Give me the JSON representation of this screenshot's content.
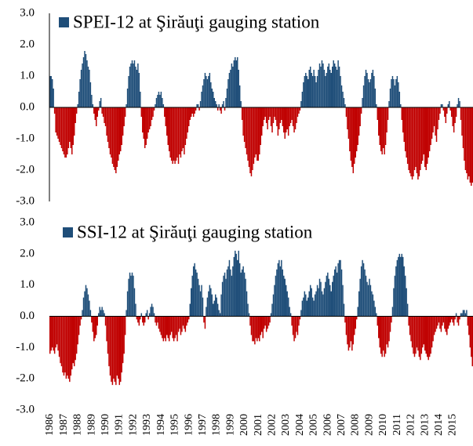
{
  "chart_data": [
    {
      "type": "bar",
      "ylim": [
        -3,
        3
      ],
      "yticks": [
        {
          "value": 3,
          "label": "3.0"
        },
        {
          "value": 2,
          "label": "2.0"
        },
        {
          "value": 1,
          "label": "1.0"
        },
        {
          "value": 0,
          "label": "0.0"
        },
        {
          "value": -1,
          "label": "-1.0"
        },
        {
          "value": -2,
          "label": "-2.0"
        },
        {
          "value": -3,
          "label": "-3.0"
        }
      ],
      "positive_color": "#1f4e79",
      "negative_color": "#c00000",
      "series": [
        {
          "name": "SPEI-12 at Şirăuţi gauging station",
          "color": "#1f4e79",
          "values": [
            1.0,
            1.0,
            0.9,
            0.6,
            -0.2,
            -0.8,
            -0.9,
            -1.0,
            -1.1,
            -1.2,
            -1.3,
            -1.4,
            -1.5,
            -1.6,
            -1.6,
            -1.5,
            -1.3,
            -1.1,
            -1.3,
            -1.5,
            -1.2,
            -0.9,
            -0.5,
            -0.2,
            0.1,
            0.5,
            0.9,
            1.2,
            1.4,
            1.6,
            1.8,
            1.7,
            1.5,
            1.3,
            1.2,
            0.8,
            0.4,
            0.1,
            -0.2,
            -0.4,
            -0.6,
            -0.3,
            -0.1,
            0.2,
            0.3,
            -0.2,
            -0.3,
            -0.5,
            -0.6,
            -0.9,
            -1.1,
            -1.3,
            -1.5,
            -1.6,
            -1.8,
            -1.9,
            -2.0,
            -2.1,
            -1.9,
            -1.7,
            -1.5,
            -1.4,
            -1.2,
            -0.9,
            -0.6,
            -0.3,
            0.1,
            0.6,
            1.0,
            1.3,
            1.4,
            1.5,
            1.4,
            1.5,
            1.3,
            1.2,
            1.4,
            1.1,
            0.5,
            -0.3,
            -0.8,
            -1.0,
            -1.3,
            -1.2,
            -1.0,
            -0.8,
            -0.7,
            -0.6,
            -0.4,
            -0.3,
            -0.1,
            0.1,
            0.3,
            0.4,
            0.5,
            0.4,
            0.5,
            0.3,
            0.1,
            -0.3,
            -0.6,
            -0.9,
            -1.2,
            -1.4,
            -1.6,
            -1.7,
            -1.8,
            -1.7,
            -1.8,
            -1.7,
            -1.6,
            -1.8,
            -1.5,
            -1.6,
            -1.4,
            -1.3,
            -1.5,
            -1.2,
            -1.0,
            -0.8,
            -0.6,
            -0.4,
            -0.3,
            -0.2,
            -0.3,
            -0.2,
            -0.1,
            0.1,
            0.1,
            -0.1,
            0.2,
            0.5,
            0.7,
            0.9,
            1.1,
            1.0,
            0.9,
            1.0,
            1.1,
            0.8,
            0.6,
            0.5,
            0.3,
            0.2,
            0.1,
            -0.1,
            0.1,
            -0.1,
            -0.2,
            0.1,
            0.2,
            -0.1,
            0.3,
            0.6,
            0.9,
            1.1,
            1.2,
            1.4,
            1.3,
            1.5,
            1.6,
            1.5,
            1.6,
            1.2,
            0.7,
            0.2,
            -0.4,
            -0.9,
            -1.1,
            -1.3,
            -1.5,
            -1.7,
            -1.9,
            -2.1,
            -2.2,
            -2.0,
            -1.8,
            -1.6,
            -1.5,
            -1.7,
            -1.7,
            -1.5,
            -1.2,
            -0.9,
            -0.6,
            -0.4,
            -0.3,
            -0.5,
            -0.7,
            -0.4,
            -0.3,
            -0.6,
            -0.8,
            -0.5,
            -0.3,
            -0.4,
            -0.6,
            -0.9,
            -0.7,
            -0.5,
            -0.4,
            -0.6,
            -0.8,
            -1.0,
            -0.8,
            -0.7,
            -0.9,
            -0.6,
            -0.5,
            -0.4,
            -0.6,
            -0.8,
            -0.7,
            -0.5,
            -0.3,
            -0.2,
            -0.1,
            0.2,
            0.5,
            0.8,
            1.0,
            1.1,
            1.0,
            0.9,
            1.2,
            1.3,
            1.1,
            1.0,
            1.2,
            1.0,
            0.8,
            1.0,
            1.2,
            1.4,
            1.3,
            1.5,
            1.4,
            1.2,
            1.0,
            1.1,
            1.3,
            1.4,
            1.2,
            1.1,
            1.3,
            1.5,
            1.4,
            1.3,
            1.2,
            1.5,
            1.3,
            1.0,
            0.7,
            0.5,
            0.3,
            0.1,
            -0.3,
            -0.7,
            -1.0,
            -1.4,
            -1.7,
            -1.9,
            -2.1,
            -1.8,
            -1.6,
            -1.4,
            -1.2,
            -0.9,
            -0.6,
            -0.2,
            0.3,
            0.7,
            1.0,
            1.2,
            1.1,
            0.9,
            0.8,
            0.9,
            1.1,
            1.2,
            1.0,
            0.6,
            0.1,
            -0.4,
            -0.9,
            -1.2,
            -1.4,
            -1.5,
            -1.3,
            -1.5,
            -1.2,
            -0.8,
            -0.4,
            0.2,
            0.6,
            0.9,
            1.0,
            0.9,
            0.7,
            0.9,
            1.0,
            0.8,
            0.5,
            0.1,
            -0.4,
            -0.8,
            -1.1,
            -1.4,
            -1.6,
            -1.8,
            -2.0,
            -2.1,
            -2.2,
            -2.3,
            -2.2,
            -2.0,
            -1.9,
            -2.1,
            -2.3,
            -2.2,
            -2.0,
            -1.8,
            -1.7,
            -1.5,
            -1.9,
            -2.0,
            -1.8,
            -1.6,
            -1.4,
            -1.2,
            -1.0,
            -0.8,
            -0.6,
            -0.9,
            -1.1,
            -0.7,
            -0.4,
            -0.2,
            0.1,
            0.1,
            -0.1,
            -0.3,
            -0.5,
            -0.2,
            0.1,
            0.2,
            -0.1,
            -0.3,
            -0.6,
            -0.8,
            -0.5,
            -0.3,
            0.1,
            0.3,
            0.2,
            -0.4,
            -0.9,
            -1.3,
            -1.7,
            -2.0,
            -2.1,
            -2.3,
            -2.2,
            -2.4,
            -2.5,
            -2.4
          ]
        }
      ]
    },
    {
      "type": "bar",
      "ylim": [
        -3,
        3
      ],
      "yticks": [
        {
          "value": 3,
          "label": "3.0"
        },
        {
          "value": 2,
          "label": "2.0"
        },
        {
          "value": 1,
          "label": "1.0"
        },
        {
          "value": 0,
          "label": "0.0"
        },
        {
          "value": -1,
          "label": "-1.0"
        },
        {
          "value": -2,
          "label": "-2.0"
        },
        {
          "value": -3,
          "label": "-3.0"
        }
      ],
      "positive_color": "#1f4e79",
      "negative_color": "#c00000",
      "categories": [
        "1986",
        null,
        null,
        null,
        null,
        null,
        null,
        null,
        null,
        null,
        null,
        null,
        "1987",
        null,
        null,
        null,
        null,
        null,
        null,
        null,
        null,
        null,
        null,
        null,
        "1988",
        null,
        null,
        null,
        null,
        null,
        null,
        null,
        null,
        null,
        null,
        null,
        "1989",
        null,
        null,
        null,
        null,
        null,
        null,
        null,
        null,
        null,
        null,
        null,
        "1990",
        null,
        null,
        null,
        null,
        null,
        null,
        null,
        null,
        null,
        null,
        null,
        "1991",
        null,
        null,
        null,
        null,
        null,
        null,
        null,
        null,
        null,
        null,
        null,
        "1992",
        null,
        null,
        null,
        null,
        null,
        null,
        null,
        null,
        null,
        null,
        null,
        "1993",
        null,
        null,
        null,
        null,
        null,
        null,
        null,
        null,
        null,
        null,
        null,
        "1994",
        null,
        null,
        null,
        null,
        null,
        null,
        null,
        null,
        null,
        null,
        null,
        "1995",
        null,
        null,
        null,
        null,
        null,
        null,
        null,
        null,
        null,
        null,
        null,
        "1996",
        null,
        null,
        null,
        null,
        null,
        null,
        null,
        null,
        null,
        null,
        null,
        "1997",
        null,
        null,
        null,
        null,
        null,
        null,
        null,
        null,
        null,
        null,
        null,
        "1998",
        null,
        null,
        null,
        null,
        null,
        null,
        null,
        null,
        null,
        null,
        null,
        "1999",
        null,
        null,
        null,
        null,
        null,
        null,
        null,
        null,
        null,
        null,
        null,
        "2000",
        null,
        null,
        null,
        null,
        null,
        null,
        null,
        null,
        null,
        null,
        null,
        "2001",
        null,
        null,
        null,
        null,
        null,
        null,
        null,
        null,
        null,
        null,
        null,
        "2002",
        null,
        null,
        null,
        null,
        null,
        null,
        null,
        null,
        null,
        null,
        null,
        "2003",
        null,
        null,
        null,
        null,
        null,
        null,
        null,
        null,
        null,
        null,
        null,
        "2004",
        null,
        null,
        null,
        null,
        null,
        null,
        null,
        null,
        null,
        null,
        null,
        "2005",
        null,
        null,
        null,
        null,
        null,
        null,
        null,
        null,
        null,
        null,
        null,
        "2006",
        null,
        null,
        null,
        null,
        null,
        null,
        null,
        null,
        null,
        null,
        null,
        "2007",
        null,
        null,
        null,
        null,
        null,
        null,
        null,
        null,
        null,
        null,
        null,
        "2008",
        null,
        null,
        null,
        null,
        null,
        null,
        null,
        null,
        null,
        null,
        null,
        "2009",
        null,
        null,
        null,
        null,
        null,
        null,
        null,
        null,
        null,
        null,
        null,
        "2010",
        null,
        null,
        null,
        null,
        null,
        null,
        null,
        null,
        null,
        null,
        null,
        "2011",
        null,
        null,
        null,
        null,
        null,
        null,
        null,
        null,
        null,
        null,
        null,
        "2012",
        null,
        null,
        null,
        null,
        null,
        null,
        null,
        null,
        null,
        null,
        null,
        "2013",
        null,
        null,
        null,
        null,
        null,
        null,
        null,
        null,
        null,
        null,
        null,
        "2014",
        null,
        null,
        null,
        null,
        null,
        null,
        null,
        null,
        null,
        null,
        null,
        "2015",
        null,
        null,
        null,
        null,
        null,
        null,
        null,
        null,
        null,
        null,
        null,
        null,
        null,
        null,
        null,
        null,
        null
      ],
      "series": [
        {
          "name": "SSI-12 at Şirăuţi gauging station",
          "color": "#1f4e79",
          "values": [
            -1.2,
            -1.1,
            -1.0,
            -1.1,
            -1.2,
            -1.0,
            -0.9,
            -1.1,
            -1.3,
            -1.5,
            -1.6,
            -1.8,
            -1.9,
            -1.8,
            -2.0,
            -1.9,
            -2.0,
            -2.1,
            -1.9,
            -1.7,
            -1.5,
            -1.6,
            -1.4,
            -1.2,
            -0.9,
            -0.6,
            -0.3,
            -0.1,
            0.2,
            0.6,
            0.8,
            1.0,
            0.9,
            0.7,
            0.5,
            0.2,
            -0.2,
            -0.5,
            -0.8,
            -0.7,
            -0.6,
            -0.3,
            0.1,
            0.3,
            0.2,
            0.3,
            0.2,
            0.1,
            -0.3,
            -0.8,
            -1.2,
            -1.6,
            -1.9,
            -2.1,
            -2.2,
            -2.0,
            -2.1,
            -2.2,
            -1.9,
            -2.0,
            -2.2,
            -2.1,
            -1.8,
            -1.5,
            -1.2,
            -0.6,
            0.2,
            0.8,
            1.2,
            1.4,
            1.3,
            1.4,
            1.3,
            0.9,
            0.4,
            -0.1,
            -0.2,
            -0.3,
            -0.1,
            0.1,
            -0.2,
            -0.3,
            -0.2,
            0.1,
            0.2,
            -0.1,
            0.1,
            0.3,
            0.4,
            0.3,
            0.1,
            -0.2,
            -0.3,
            -0.2,
            -0.4,
            -0.5,
            -0.6,
            -0.7,
            -0.8,
            -0.7,
            -0.8,
            -0.6,
            -0.7,
            -0.8,
            -0.6,
            -0.5,
            -0.7,
            -0.8,
            -0.7,
            -0.6,
            -0.8,
            -0.5,
            -0.4,
            -0.6,
            -0.5,
            -0.3,
            -0.4,
            -0.5,
            -0.3,
            -0.2,
            -0.1,
            0.4,
            0.9,
            1.3,
            1.6,
            1.7,
            1.5,
            1.4,
            1.2,
            1.0,
            0.8,
            1.0,
            0.6,
            -0.2,
            -0.4,
            0.3,
            0.6,
            0.8,
            1.0,
            0.9,
            0.7,
            0.4,
            0.5,
            0.7,
            0.6,
            0.4,
            0.2,
            0.1,
            0.7,
            1.1,
            1.3,
            1.4,
            1.2,
            1.5,
            1.6,
            1.8,
            1.5,
            1.3,
            1.6,
            1.9,
            2.1,
            2.0,
            1.8,
            2.1,
            1.7,
            1.4,
            1.5,
            1.6,
            1.4,
            1.2,
            0.8,
            0.4,
            0.1,
            -0.3,
            -0.6,
            -0.8,
            -0.8,
            -0.9,
            -0.7,
            -0.8,
            -0.7,
            -0.8,
            -0.6,
            -0.5,
            -0.7,
            -0.4,
            -0.3,
            -0.5,
            -0.4,
            -0.3,
            -0.2,
            0.1,
            0.4,
            0.7,
            1.0,
            1.3,
            1.5,
            1.7,
            1.8,
            1.6,
            1.8,
            1.5,
            1.3,
            1.2,
            1.0,
            0.8,
            0.6,
            0.3,
            0.1,
            -0.3,
            -0.6,
            -0.8,
            -0.7,
            -0.5,
            -0.6,
            -0.3,
            -0.1,
            0.2,
            0.5,
            0.6,
            0.8,
            0.7,
            0.5,
            0.6,
            0.8,
            1.0,
            0.9,
            0.6,
            0.5,
            0.7,
            0.8,
            1.0,
            0.9,
            1.2,
            1.1,
            0.8,
            0.7,
            0.9,
            1.1,
            1.3,
            1.4,
            1.2,
            1.0,
            0.8,
            1.1,
            1.3,
            1.5,
            1.6,
            1.4,
            1.7,
            1.8,
            1.8,
            1.5,
            1.0,
            0.4,
            -0.2,
            -0.6,
            -0.9,
            -1.1,
            -1.0,
            -0.8,
            -1.1,
            -0.9,
            -0.6,
            -0.4,
            -0.1,
            0.3,
            0.8,
            1.2,
            1.6,
            1.8,
            1.7,
            1.5,
            1.3,
            1.1,
            1.0,
            1.2,
            1.0,
            0.8,
            0.7,
            0.5,
            0.3,
            0.1,
            -0.3,
            -0.7,
            -1.0,
            -1.2,
            -1.3,
            -1.1,
            -1.3,
            -1.2,
            -0.9,
            -1.0,
            -0.8,
            -0.5,
            -0.2,
            0.3,
            0.9,
            1.3,
            1.6,
            1.8,
            1.9,
            2.0,
            1.9,
            2.0,
            1.9,
            1.6,
            1.3,
            0.9,
            0.4,
            -0.3,
            -0.6,
            -0.8,
            -1.0,
            -1.2,
            -1.3,
            -1.2,
            -1.0,
            -1.1,
            -1.3,
            -1.4,
            -1.2,
            -1.0,
            -0.9,
            -1.1,
            -1.2,
            -1.3,
            -1.4,
            -1.3,
            -1.2,
            -1.0,
            -0.8,
            -0.6,
            -0.5,
            -0.4,
            -0.3,
            -0.2,
            -0.4,
            -0.5,
            -0.3,
            -0.2,
            -0.4,
            -0.5,
            -0.6,
            -0.4,
            -0.3,
            -0.2,
            -0.1,
            -0.2,
            -0.3,
            -0.1,
            0.1,
            -0.2,
            -0.3,
            -0.1,
            0.1,
            0.1,
            0.2,
            0.2,
            0.1,
            0.2,
            -0.3,
            -0.6,
            -1.0,
            -1.3,
            -1.6
          ]
        }
      ]
    }
  ]
}
